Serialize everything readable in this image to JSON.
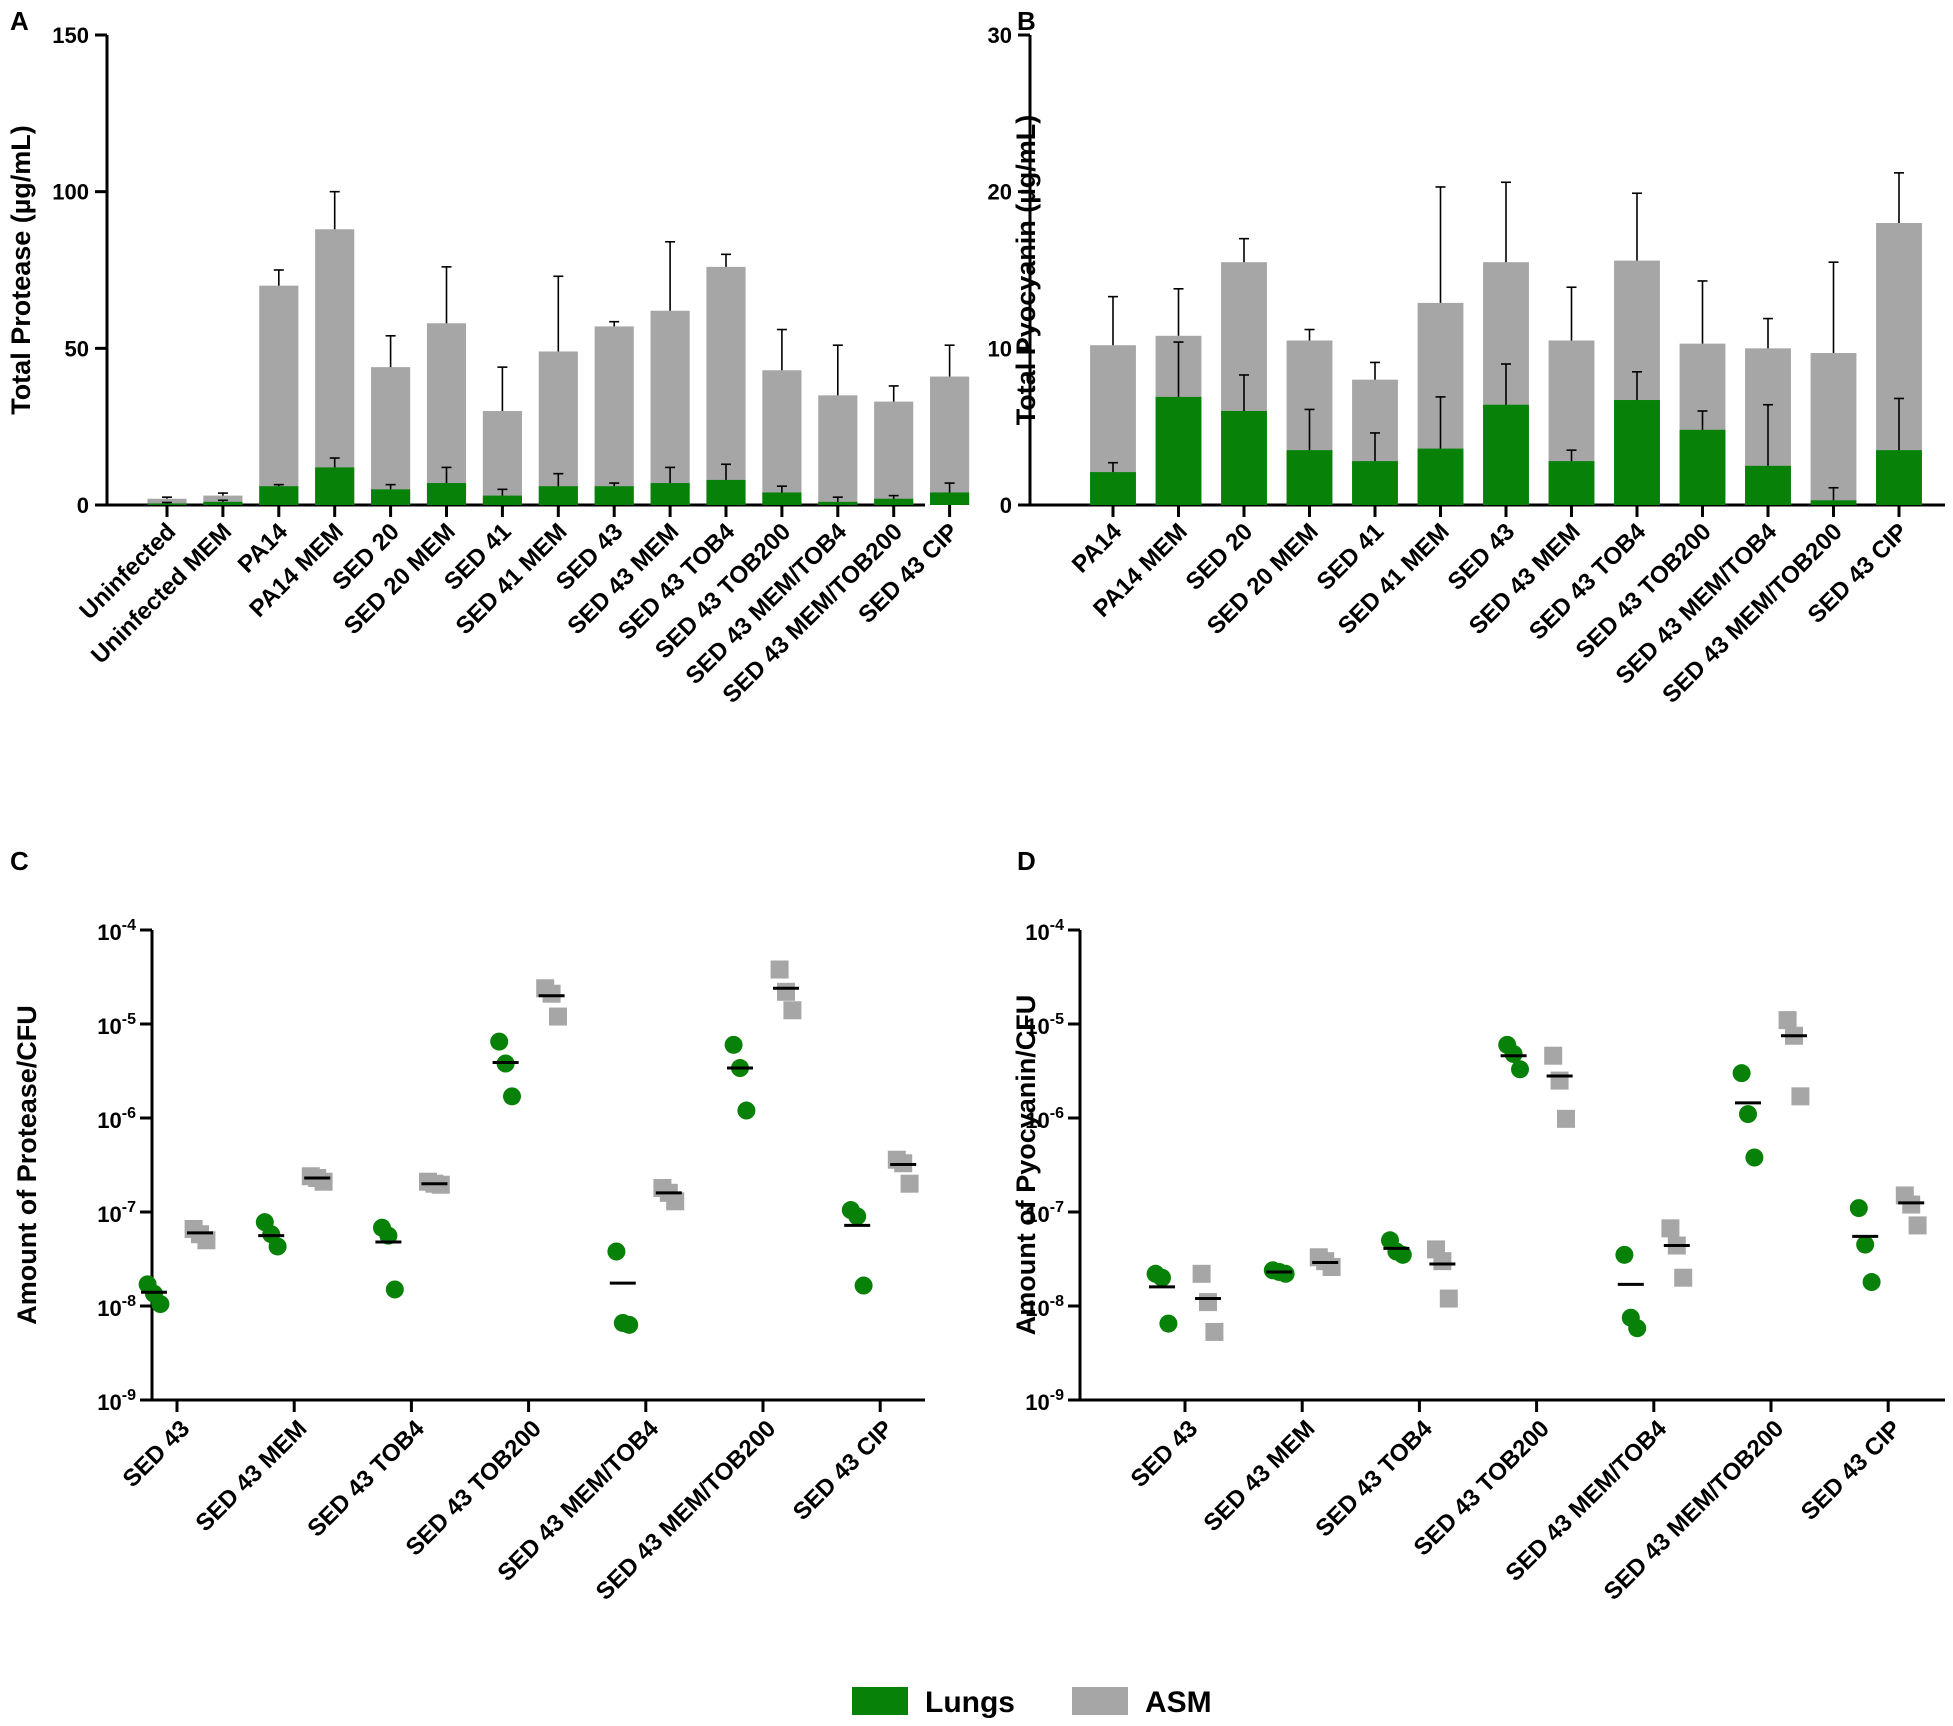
{
  "colors": {
    "lungs": "#078107",
    "asm": "#a6a6a6",
    "axis": "#000000"
  },
  "legend": {
    "lungs_label": "Lungs",
    "asm_label": "ASM"
  },
  "chart_data": [
    {
      "panel": "A",
      "type": "bar",
      "stacking": "overlay",
      "ylabel": "Total Protease (µg/mL)",
      "ylim": [
        0,
        150
      ],
      "yticks": [
        "0",
        "50",
        "100",
        "150"
      ],
      "categories": [
        "Uninfected",
        "Uninfected MEM",
        "PA14",
        "PA14 MEM",
        "SED 20",
        "SED 20 MEM",
        "SED 41",
        "SED 41 MEM",
        "SED 43",
        "SED 43 MEM",
        "SED 43 TOB4",
        "SED 43 TOB200",
        "SED 43 MEM/TOB4",
        "SED 43 MEM/TOB200",
        "SED 43 CIP"
      ],
      "series": [
        {
          "name": "ASM",
          "values": [
            2,
            3,
            70,
            88,
            44,
            58,
            30,
            49,
            57,
            62,
            76,
            43,
            35,
            33,
            41
          ],
          "error": [
            0.5,
            0.8,
            5,
            12,
            10,
            18,
            14,
            24,
            1.5,
            22,
            4,
            13,
            16,
            5,
            10
          ]
        },
        {
          "name": "Lungs",
          "values": [
            0.5,
            1,
            6,
            12,
            5,
            7,
            3,
            6,
            6,
            7,
            8,
            4,
            1,
            2,
            4
          ],
          "error": [
            0.3,
            0.5,
            0.5,
            3,
            1.5,
            5,
            2,
            4,
            1,
            5,
            5,
            2,
            1.5,
            1,
            3
          ]
        }
      ]
    },
    {
      "panel": "B",
      "type": "bar",
      "stacking": "overlay",
      "ylabel": "Total Pyocyanin (µg/mL)",
      "ylim": [
        0,
        30
      ],
      "yticks": [
        "0",
        "10",
        "20",
        "30"
      ],
      "categories": [
        "PA14",
        "PA14 MEM",
        "SED 20",
        "SED 20 MEM",
        "SED 41",
        "SED 41 MEM",
        "SED 43",
        "SED 43 MEM",
        "SED 43 TOB4",
        "SED 43 TOB200",
        "SED 43 MEM/TOB4",
        "SED 43 MEM/TOB200",
        "SED 43 CIP"
      ],
      "series": [
        {
          "name": "ASM",
          "values": [
            10.2,
            10.8,
            15.5,
            10.5,
            8,
            12.9,
            15.5,
            10.5,
            15.6,
            10.3,
            10,
            9.7,
            18
          ],
          "error": [
            3.1,
            3,
            1.5,
            0.7,
            1.1,
            7.4,
            5.1,
            3.4,
            4.3,
            4,
            1.9,
            5.8,
            3.2
          ]
        },
        {
          "name": "Lungs",
          "values": [
            2.1,
            6.9,
            6,
            3.5,
            2.8,
            3.6,
            6.4,
            2.8,
            6.7,
            4.8,
            2.5,
            0.3,
            3.5
          ],
          "error": [
            0.6,
            3.5,
            2.3,
            2.6,
            1.8,
            3.3,
            2.6,
            0.7,
            1.8,
            1.2,
            3.9,
            0.8,
            3.3
          ]
        }
      ]
    },
    {
      "panel": "C",
      "type": "scatter",
      "yscale": "log",
      "ylabel": "Amount of Protease/CFU",
      "ylim_exp": [
        -9,
        -4
      ],
      "ytick_base": "10",
      "yticks_exp": [
        "-9",
        "-8",
        "-7",
        "-6",
        "-5",
        "-4"
      ],
      "categories": [
        "SED 43",
        "SED 43 MEM",
        "SED 43 TOB4",
        "SED 43 TOB200",
        "SED 43 MEM/TOB4",
        "SED 43 MEM/TOB200",
        "SED 43 CIP"
      ],
      "series": [
        {
          "name": "Lungs",
          "points": [
            [
              1.7e-08,
              1.35e-08,
              1.05e-08
            ],
            [
              7.8e-08,
              5.8e-08,
              4.3e-08
            ],
            [
              6.8e-08,
              5.6e-08,
              1.5e-08
            ],
            [
              6.5e-06,
              3.8e-06,
              1.7e-06
            ],
            [
              3.8e-08,
              6.6e-09,
              6.3e-09
            ],
            [
              6e-06,
              3.4e-06,
              1.2e-06
            ],
            [
              1.05e-07,
              9e-08,
              1.65e-08
            ]
          ],
          "means": [
            1.4e-08,
            5.6e-08,
            4.8e-08,
            3.9e-06,
            1.75e-08,
            3.4e-06,
            7.2e-08
          ]
        },
        {
          "name": "ASM",
          "points": [
            [
              6.6e-08,
              5.8e-08,
              5e-08
            ],
            [
              2.4e-07,
              2.3e-07,
              2.1e-07
            ],
            [
              2.1e-07,
              2e-07,
              1.95e-07
            ],
            [
              2.4e-05,
              2.1e-05,
              1.2e-05
            ],
            [
              1.8e-07,
              1.6e-07,
              1.3e-07
            ],
            [
              3.8e-05,
              2.2e-05,
              1.4e-05
            ],
            [
              3.6e-07,
              3.3e-07,
              2e-07
            ]
          ],
          "means": [
            6e-08,
            2.3e-07,
            2e-07,
            2e-05,
            1.6e-07,
            2.4e-05,
            3.2e-07
          ]
        }
      ]
    },
    {
      "panel": "D",
      "type": "scatter",
      "yscale": "log",
      "ylabel": "Amount of Pyocyanin/CFU",
      "ylim_exp": [
        -9,
        -4
      ],
      "ytick_base": "10",
      "yticks_exp": [
        "-9",
        "-8",
        "-7",
        "-6",
        "-5",
        "-4"
      ],
      "categories": [
        "SED 43",
        "SED 43 MEM",
        "SED 43 TOB4",
        "SED 43 TOB200",
        "SED 43 MEM/TOB4",
        "SED 43 MEM/TOB200",
        "SED 43 CIP"
      ],
      "series": [
        {
          "name": "Lungs",
          "points": [
            [
              2.2e-08,
              2e-08,
              6.5e-09
            ],
            [
              2.4e-08,
              2.3e-08,
              2.2e-08
            ],
            [
              5e-08,
              3.8e-08,
              3.5e-08
            ],
            [
              6e-06,
              4.8e-06,
              3.3e-06
            ],
            [
              3.5e-08,
              7.5e-09,
              5.8e-09
            ],
            [
              3e-06,
              1.1e-06,
              3.8e-07
            ],
            [
              1.1e-07,
              4.5e-08,
              1.8e-08
            ]
          ],
          "means": [
            1.6e-08,
            2.3e-08,
            4.1e-08,
            4.6e-06,
            1.7e-08,
            1.45e-06,
            5.5e-08
          ]
        },
        {
          "name": "ASM",
          "points": [
            [
              2.2e-08,
              1.1e-08,
              5.3e-09
            ],
            [
              3.3e-08,
              3e-08,
              2.6e-08
            ],
            [
              4e-08,
              3e-08,
              1.2e-08
            ],
            [
              4.6e-06,
              2.5e-06,
              9.8e-07
            ],
            [
              6.7e-08,
              4.4e-08,
              2e-08
            ],
            [
              1.1e-05,
              7.5e-06,
              1.7e-06
            ],
            [
              1.5e-07,
              1.2e-07,
              7.2e-08
            ]
          ],
          "means": [
            1.2e-08,
            2.9e-08,
            2.8e-08,
            2.8e-06,
            4.4e-08,
            7.5e-06,
            1.25e-07
          ]
        }
      ]
    }
  ]
}
